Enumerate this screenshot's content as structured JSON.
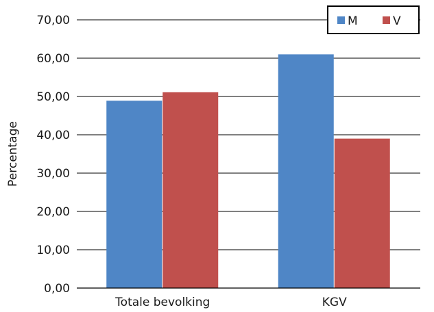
{
  "chart_data": {
    "type": "bar",
    "categories": [
      "Totale bevolking",
      "KGV"
    ],
    "series": [
      {
        "name": "M",
        "values": [
          48.9,
          61.0
        ],
        "color": "#4f86c6"
      },
      {
        "name": "V",
        "values": [
          51.1,
          39.0
        ],
        "color": "#c0504d"
      }
    ],
    "ylabel": "Percentage",
    "xlabel": "",
    "ylim": [
      0,
      70
    ],
    "yticks": [
      "0,00",
      "10,00",
      "20,00",
      "30,00",
      "40,00",
      "50,00",
      "60,00",
      "70,00"
    ],
    "grid": true,
    "legend_position": "top-right"
  }
}
